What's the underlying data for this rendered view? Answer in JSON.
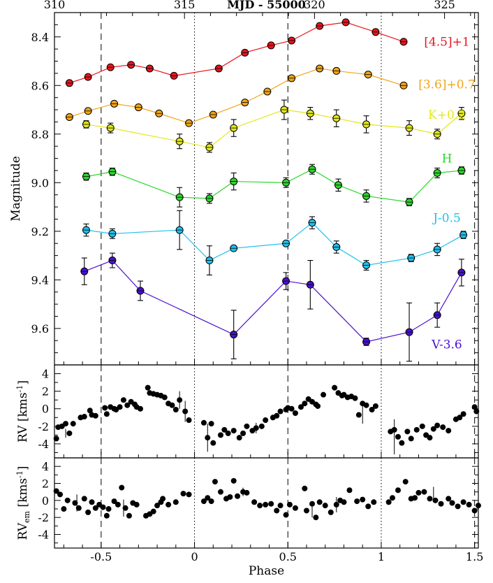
{
  "chart_data": [
    {
      "type": "line",
      "xlabel_top": "MJD - 55000",
      "ylabel": "Magnitude",
      "top_axis_ticks": [
        "310",
        "315",
        "320",
        "325"
      ],
      "top_xlim": [
        310,
        326.3
      ],
      "xlim": [
        -0.75,
        1.52
      ],
      "ylim": [
        9.75,
        8.3
      ],
      "y_ticks": [
        "8.4",
        "8.6",
        "8.8",
        "9.0",
        "9.2",
        "9.4",
        "9.6"
      ],
      "series": [
        {
          "name": "[4.5]+1",
          "color": "#e8141c",
          "points": [
            [
              -0.67,
              8.59
            ],
            [
              -0.57,
              8.565
            ],
            [
              -0.45,
              8.525
            ],
            [
              -0.34,
              8.515
            ],
            [
              -0.24,
              8.53
            ],
            [
              -0.11,
              8.56
            ],
            [
              0.13,
              8.53
            ],
            [
              0.27,
              8.465
            ],
            [
              0.41,
              8.435
            ],
            [
              0.52,
              8.415
            ],
            [
              0.67,
              8.355
            ],
            [
              0.81,
              8.34
            ],
            [
              0.97,
              8.38
            ],
            [
              1.12,
              8.42
            ]
          ],
          "errors": [
            0.01,
            0.01,
            0.01,
            0.01,
            0.01,
            0.01,
            0.01,
            0.01,
            0.01,
            0.01,
            0.01,
            0.01,
            0.01,
            0.01
          ]
        },
        {
          "name": "[3.6]+0.7",
          "color": "#f2a418",
          "points": [
            [
              -0.67,
              8.73
            ],
            [
              -0.57,
              8.705
            ],
            [
              -0.43,
              8.675
            ],
            [
              -0.3,
              8.69
            ],
            [
              -0.19,
              8.715
            ],
            [
              -0.03,
              8.755
            ],
            [
              0.1,
              8.72
            ],
            [
              0.27,
              8.67
            ],
            [
              0.39,
              8.625
            ],
            [
              0.52,
              8.57
            ],
            [
              0.67,
              8.53
            ],
            [
              0.76,
              8.54
            ],
            [
              0.93,
              8.555
            ],
            [
              1.12,
              8.6
            ]
          ],
          "errors": [
            0.01,
            0.01,
            0.01,
            0.01,
            0.01,
            0.01,
            0.01,
            0.01,
            0.01,
            0.01,
            0.01,
            0.01,
            0.01,
            0.01
          ]
        },
        {
          "name": "K+0.2",
          "color": "#e4e818",
          "points": [
            [
              -0.58,
              8.76
            ],
            [
              -0.45,
              8.775
            ],
            [
              -0.08,
              8.83
            ],
            [
              0.08,
              8.855
            ],
            [
              0.21,
              8.775
            ],
            [
              0.48,
              8.7
            ],
            [
              0.62,
              8.715
            ],
            [
              0.76,
              8.735
            ],
            [
              0.92,
              8.76
            ],
            [
              1.15,
              8.775
            ],
            [
              1.3,
              8.8
            ],
            [
              1.43,
              8.715
            ]
          ],
          "errors": [
            0.015,
            0.02,
            0.03,
            0.02,
            0.035,
            0.04,
            0.025,
            0.035,
            0.035,
            0.03,
            0.02,
            0.025
          ]
        },
        {
          "name": "H",
          "color": "#2bd62b",
          "points": [
            [
              -0.58,
              8.975
            ],
            [
              -0.44,
              8.955
            ],
            [
              -0.08,
              9.06
            ],
            [
              0.08,
              9.065
            ],
            [
              0.21,
              8.995
            ],
            [
              0.49,
              9.0
            ],
            [
              0.63,
              8.945
            ],
            [
              0.77,
              9.01
            ],
            [
              0.92,
              9.055
            ],
            [
              1.15,
              9.08
            ],
            [
              1.3,
              8.96
            ],
            [
              1.43,
              8.95
            ]
          ],
          "errors": [
            0.015,
            0.015,
            0.04,
            0.02,
            0.035,
            0.02,
            0.02,
            0.025,
            0.025,
            0.015,
            0.02,
            0.015
          ]
        },
        {
          "name": "J-0.5",
          "color": "#1ec1ee",
          "points": [
            [
              -0.58,
              9.195
            ],
            [
              -0.44,
              9.21
            ],
            [
              -0.08,
              9.195
            ],
            [
              0.08,
              9.32
            ],
            [
              0.21,
              9.27
            ],
            [
              0.49,
              9.25
            ],
            [
              0.63,
              9.165
            ],
            [
              0.76,
              9.265
            ],
            [
              0.92,
              9.34
            ],
            [
              1.16,
              9.31
            ],
            [
              1.3,
              9.275
            ],
            [
              1.44,
              9.215
            ]
          ],
          "errors": [
            0.025,
            0.02,
            0.08,
            0.06,
            0.01,
            0.01,
            0.025,
            0.025,
            0.02,
            0.015,
            0.025,
            0.015
          ]
        },
        {
          "name": "V-3.6",
          "color": "#4a0fd1",
          "points": [
            [
              -0.59,
              9.365
            ],
            [
              -0.44,
              9.32
            ],
            [
              -0.29,
              9.445
            ],
            [
              0.21,
              9.625
            ],
            [
              0.49,
              9.405
            ],
            [
              0.62,
              9.42
            ],
            [
              0.92,
              9.655
            ],
            [
              1.15,
              9.615
            ],
            [
              1.3,
              9.545
            ],
            [
              1.43,
              9.37
            ]
          ],
          "errors": [
            0.055,
            0.03,
            0.04,
            0.1,
            0.035,
            0.1,
            0.015,
            0.12,
            0.05,
            0.055
          ]
        }
      ]
    },
    {
      "type": "scatter",
      "ylabel": "RV [kms⁻¹]",
      "ylim": [
        -5.6,
        5.0
      ],
      "y_ticks": [
        "-4",
        "-2",
        "0",
        "2",
        "4"
      ],
      "x": [
        -0.74,
        -0.73,
        -0.71,
        -0.69,
        -0.67,
        -0.65,
        -0.61,
        -0.59,
        -0.56,
        -0.55,
        -0.53,
        -0.48,
        -0.47,
        -0.45,
        -0.43,
        -0.42,
        -0.4,
        -0.38,
        -0.36,
        -0.34,
        -0.32,
        -0.31,
        -0.29,
        -0.25,
        -0.24,
        -0.22,
        -0.2,
        -0.18,
        -0.16,
        -0.14,
        -0.12,
        -0.1,
        -0.08,
        -0.05,
        -0.03,
        0.05,
        0.07,
        0.09,
        0.1,
        0.14,
        0.16,
        0.18,
        0.21,
        0.24,
        0.26,
        0.28,
        0.31,
        0.33,
        0.36,
        0.38,
        0.42,
        0.44,
        0.46,
        0.49,
        0.5,
        0.52,
        0.54,
        0.57,
        0.59,
        0.61,
        0.63,
        0.65,
        0.66,
        0.69,
        0.75,
        0.77,
        0.79,
        0.8,
        0.82,
        0.84,
        0.86,
        0.88,
        0.9,
        0.92,
        0.95,
        0.97,
        1.05,
        1.07,
        1.09,
        1.11,
        1.14,
        1.16,
        1.19,
        1.22,
        1.24,
        1.26,
        1.28,
        1.3,
        1.33,
        1.36,
        1.4,
        1.42,
        1.44,
        1.5,
        1.51
      ],
      "values": [
        -3.4,
        -2.1,
        -2.0,
        -1.7,
        -2.8,
        -1.7,
        -1.0,
        -0.9,
        -0.2,
        -0.7,
        -0.8,
        0.1,
        -0.6,
        0.2,
        0.0,
        -0.1,
        0.2,
        1.0,
        0.4,
        0.8,
        0.5,
        0.2,
        0.0,
        2.4,
        1.8,
        1.7,
        1.6,
        1.5,
        1.3,
        0.6,
        0.4,
        -0.1,
        1.0,
        -0.3,
        -1.3,
        -1.6,
        -3.3,
        -1.7,
        -3.9,
        -3.0,
        -2.4,
        -2.8,
        -2.5,
        -3.3,
        -2.8,
        -2.0,
        -2.5,
        -2.2,
        -2.0,
        -1.3,
        -1.0,
        -0.8,
        -0.3,
        -0.1,
        0.1,
        0.0,
        -0.5,
        0.2,
        0.6,
        1.1,
        0.8,
        0.5,
        0.3,
        1.6,
        2.4,
        1.8,
        1.5,
        1.6,
        1.3,
        1.4,
        1.2,
        -0.7,
        0.6,
        0.4,
        -0.1,
        0.3,
        -2.6,
        -2.4,
        -3.2,
        -3.9,
        -2.6,
        -3.4,
        -2.4,
        -2.0,
        -3.0,
        -3.3,
        -2.3,
        -1.9,
        -2.1,
        -2.5,
        -1.2,
        -1.0,
        -0.6,
        0.2,
        -0.3
      ]
    },
    {
      "type": "scatter",
      "xlabel": "Phase",
      "ylabel": "RVem [kms⁻¹]",
      "ylim": [
        -5.6,
        5.0
      ],
      "y_ticks": [
        "-4",
        "-2",
        "0",
        "2",
        "4"
      ],
      "x_ticks": [
        "-0.5",
        "0",
        "0.5",
        "1",
        "1.5"
      ],
      "x": [
        -0.74,
        -0.72,
        -0.7,
        -0.68,
        -0.64,
        -0.62,
        -0.59,
        -0.57,
        -0.55,
        -0.53,
        -0.51,
        -0.49,
        -0.47,
        -0.46,
        -0.43,
        -0.41,
        -0.39,
        -0.37,
        -0.35,
        -0.33,
        -0.31,
        -0.26,
        -0.24,
        -0.22,
        -0.2,
        -0.18,
        -0.17,
        -0.14,
        -0.1,
        -0.06,
        -0.03,
        0.05,
        0.07,
        0.09,
        0.11,
        0.14,
        0.17,
        0.19,
        0.21,
        0.23,
        0.26,
        0.28,
        0.32,
        0.35,
        0.38,
        0.41,
        0.44,
        0.46,
        0.49,
        0.51,
        0.54,
        0.59,
        0.6,
        0.63,
        0.65,
        0.67,
        0.7,
        0.73,
        0.76,
        0.78,
        0.8,
        0.83,
        0.87,
        0.9,
        0.93,
        0.96,
        1.04,
        1.06,
        1.09,
        1.13,
        1.16,
        1.18,
        1.2,
        1.23,
        1.26,
        1.29,
        1.32,
        1.36,
        1.38,
        1.41,
        1.44,
        1.47,
        1.5,
        1.52
      ],
      "values": [
        1.1,
        0.7,
        -1.0,
        0.0,
        -0.3,
        -0.9,
        0.2,
        -1.4,
        -0.2,
        -0.9,
        -0.5,
        -0.8,
        -1.8,
        -1.0,
        -0.1,
        -0.5,
        1.5,
        -0.9,
        -1.8,
        -0.3,
        -0.5,
        -1.8,
        -1.6,
        -1.3,
        -0.6,
        -0.2,
        0.2,
        -0.5,
        -0.2,
        0.8,
        0.7,
        -0.1,
        0.3,
        -0.1,
        2.2,
        1.0,
        0.2,
        0.4,
        2.3,
        0.5,
        1.0,
        0.9,
        -0.2,
        -0.6,
        -0.5,
        -0.4,
        -1.2,
        -0.6,
        -1.7,
        -0.5,
        -0.9,
        1.4,
        -1.2,
        -0.4,
        -2.0,
        -0.2,
        -0.6,
        -1.4,
        -0.5,
        0.0,
        -0.2,
        1.2,
        -0.1,
        0.1,
        -0.7,
        -0.2,
        -0.2,
        0.3,
        1.2,
        2.2,
        0.2,
        0.3,
        0.9,
        1.0,
        0.2,
        0.0,
        -0.4,
        0.2,
        -0.3,
        -0.7,
        -0.2,
        -0.5,
        -1.2,
        -0.6
      ],
      "reference_lines": [
        -0.5,
        0,
        0.5,
        1,
        1.5
      ]
    }
  ]
}
